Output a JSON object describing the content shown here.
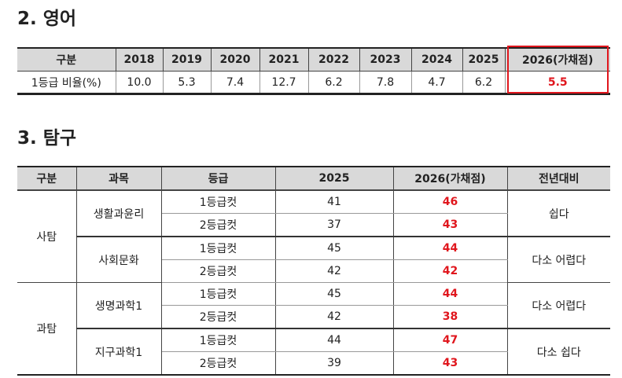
{
  "english": {
    "title": "2. 영어",
    "headers": [
      "구분",
      "2018",
      "2019",
      "2020",
      "2021",
      "2022",
      "2023",
      "2024",
      "2025",
      "2026(가채점)"
    ],
    "row": [
      "1등급 비율(%)",
      "10.0",
      "5.3",
      "7.4",
      "12.7",
      "6.2",
      "7.8",
      "4.7",
      "6.2",
      "5.5"
    ]
  },
  "inquiry": {
    "title": "3. 탐구",
    "headers": [
      "구분",
      "과목",
      "등급",
      "2025",
      "2026(가채점)",
      "전년대비"
    ],
    "groups": [
      {
        "name": "사탐",
        "subjects": [
          {
            "name": "생활과윤리",
            "compare": "쉽다",
            "rows": [
              [
                "1등급컷",
                "41",
                "46"
              ],
              [
                "2등급컷",
                "37",
                "43"
              ]
            ]
          },
          {
            "name": "사회문화",
            "compare": "다소 어렵다",
            "rows": [
              [
                "1등급컷",
                "45",
                "44"
              ],
              [
                "2등급컷",
                "42",
                "42"
              ]
            ]
          }
        ]
      },
      {
        "name": "과탐",
        "subjects": [
          {
            "name": "생명과학1",
            "compare": "다소 어렵다",
            "rows": [
              [
                "1등급컷",
                "45",
                "44"
              ],
              [
                "2등급컷",
                "42",
                "38"
              ]
            ]
          },
          {
            "name": "지구과학1",
            "compare": "다소 쉽다",
            "rows": [
              [
                "1등급컷",
                "44",
                "47"
              ],
              [
                "2등급컷",
                "39",
                "43"
              ]
            ]
          }
        ]
      }
    ]
  },
  "colors": {
    "highlight": "#e0161d",
    "header_bg": "#d9d9d9"
  }
}
